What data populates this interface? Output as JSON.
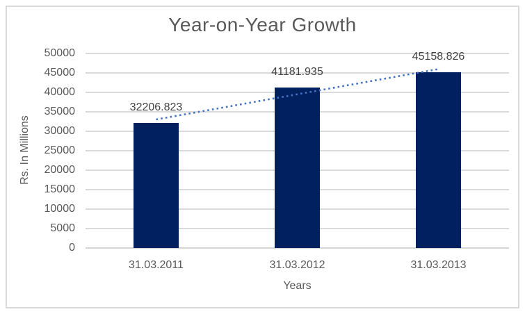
{
  "chart_data": {
    "type": "bar",
    "title": "Year-on-Year Growth",
    "xlabel": "Years",
    "ylabel": "Rs. In Millions",
    "categories": [
      "31.03.2011",
      "31.03.2012",
      "31.03.2013"
    ],
    "values": [
      32206.823,
      41181.935,
      45158.826
    ],
    "data_labels": [
      "32206.823",
      "41181.935",
      "45158.826"
    ],
    "ylim": [
      0,
      50000
    ],
    "ytick_step": 5000,
    "ytick_labels": [
      "0",
      "5000",
      "10000",
      "15000",
      "20000",
      "25000",
      "30000",
      "35000",
      "40000",
      "45000",
      "50000"
    ],
    "grid": true,
    "legend": "none",
    "trendline": {
      "type": "linear",
      "style": "dotted",
      "span": "first-to-last-category-center"
    },
    "colors": {
      "bar": "#002060",
      "trendline": "#4472C4",
      "gridline": "#DADADA",
      "axis_line": "#D6D6D6",
      "title_text": "#595959",
      "axis_text": "#595959",
      "data_label_text": "#404040",
      "frame_border": "#D9D9D9",
      "background": "#FFFFFF"
    }
  }
}
